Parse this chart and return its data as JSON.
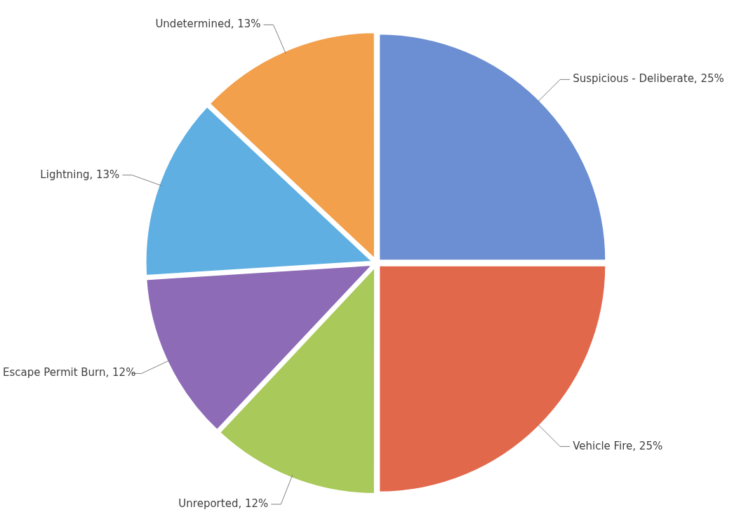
{
  "chart_data": {
    "type": "pie",
    "categories": [
      "Suspicious - Deliberate",
      "Vehicle Fire",
      "Unreported",
      "Escape Permit Burn",
      "Lightning",
      "Undetermined"
    ],
    "values": [
      25,
      25,
      12,
      12,
      13,
      13
    ],
    "value_labels": [
      "25%",
      "25%",
      "12%",
      "12%",
      "13%",
      "13%"
    ],
    "colors": [
      "#6b8fd2",
      "#e2684c",
      "#a9c95a",
      "#8d6bb6",
      "#5fafe2",
      "#f2a04c"
    ],
    "legend": false
  }
}
